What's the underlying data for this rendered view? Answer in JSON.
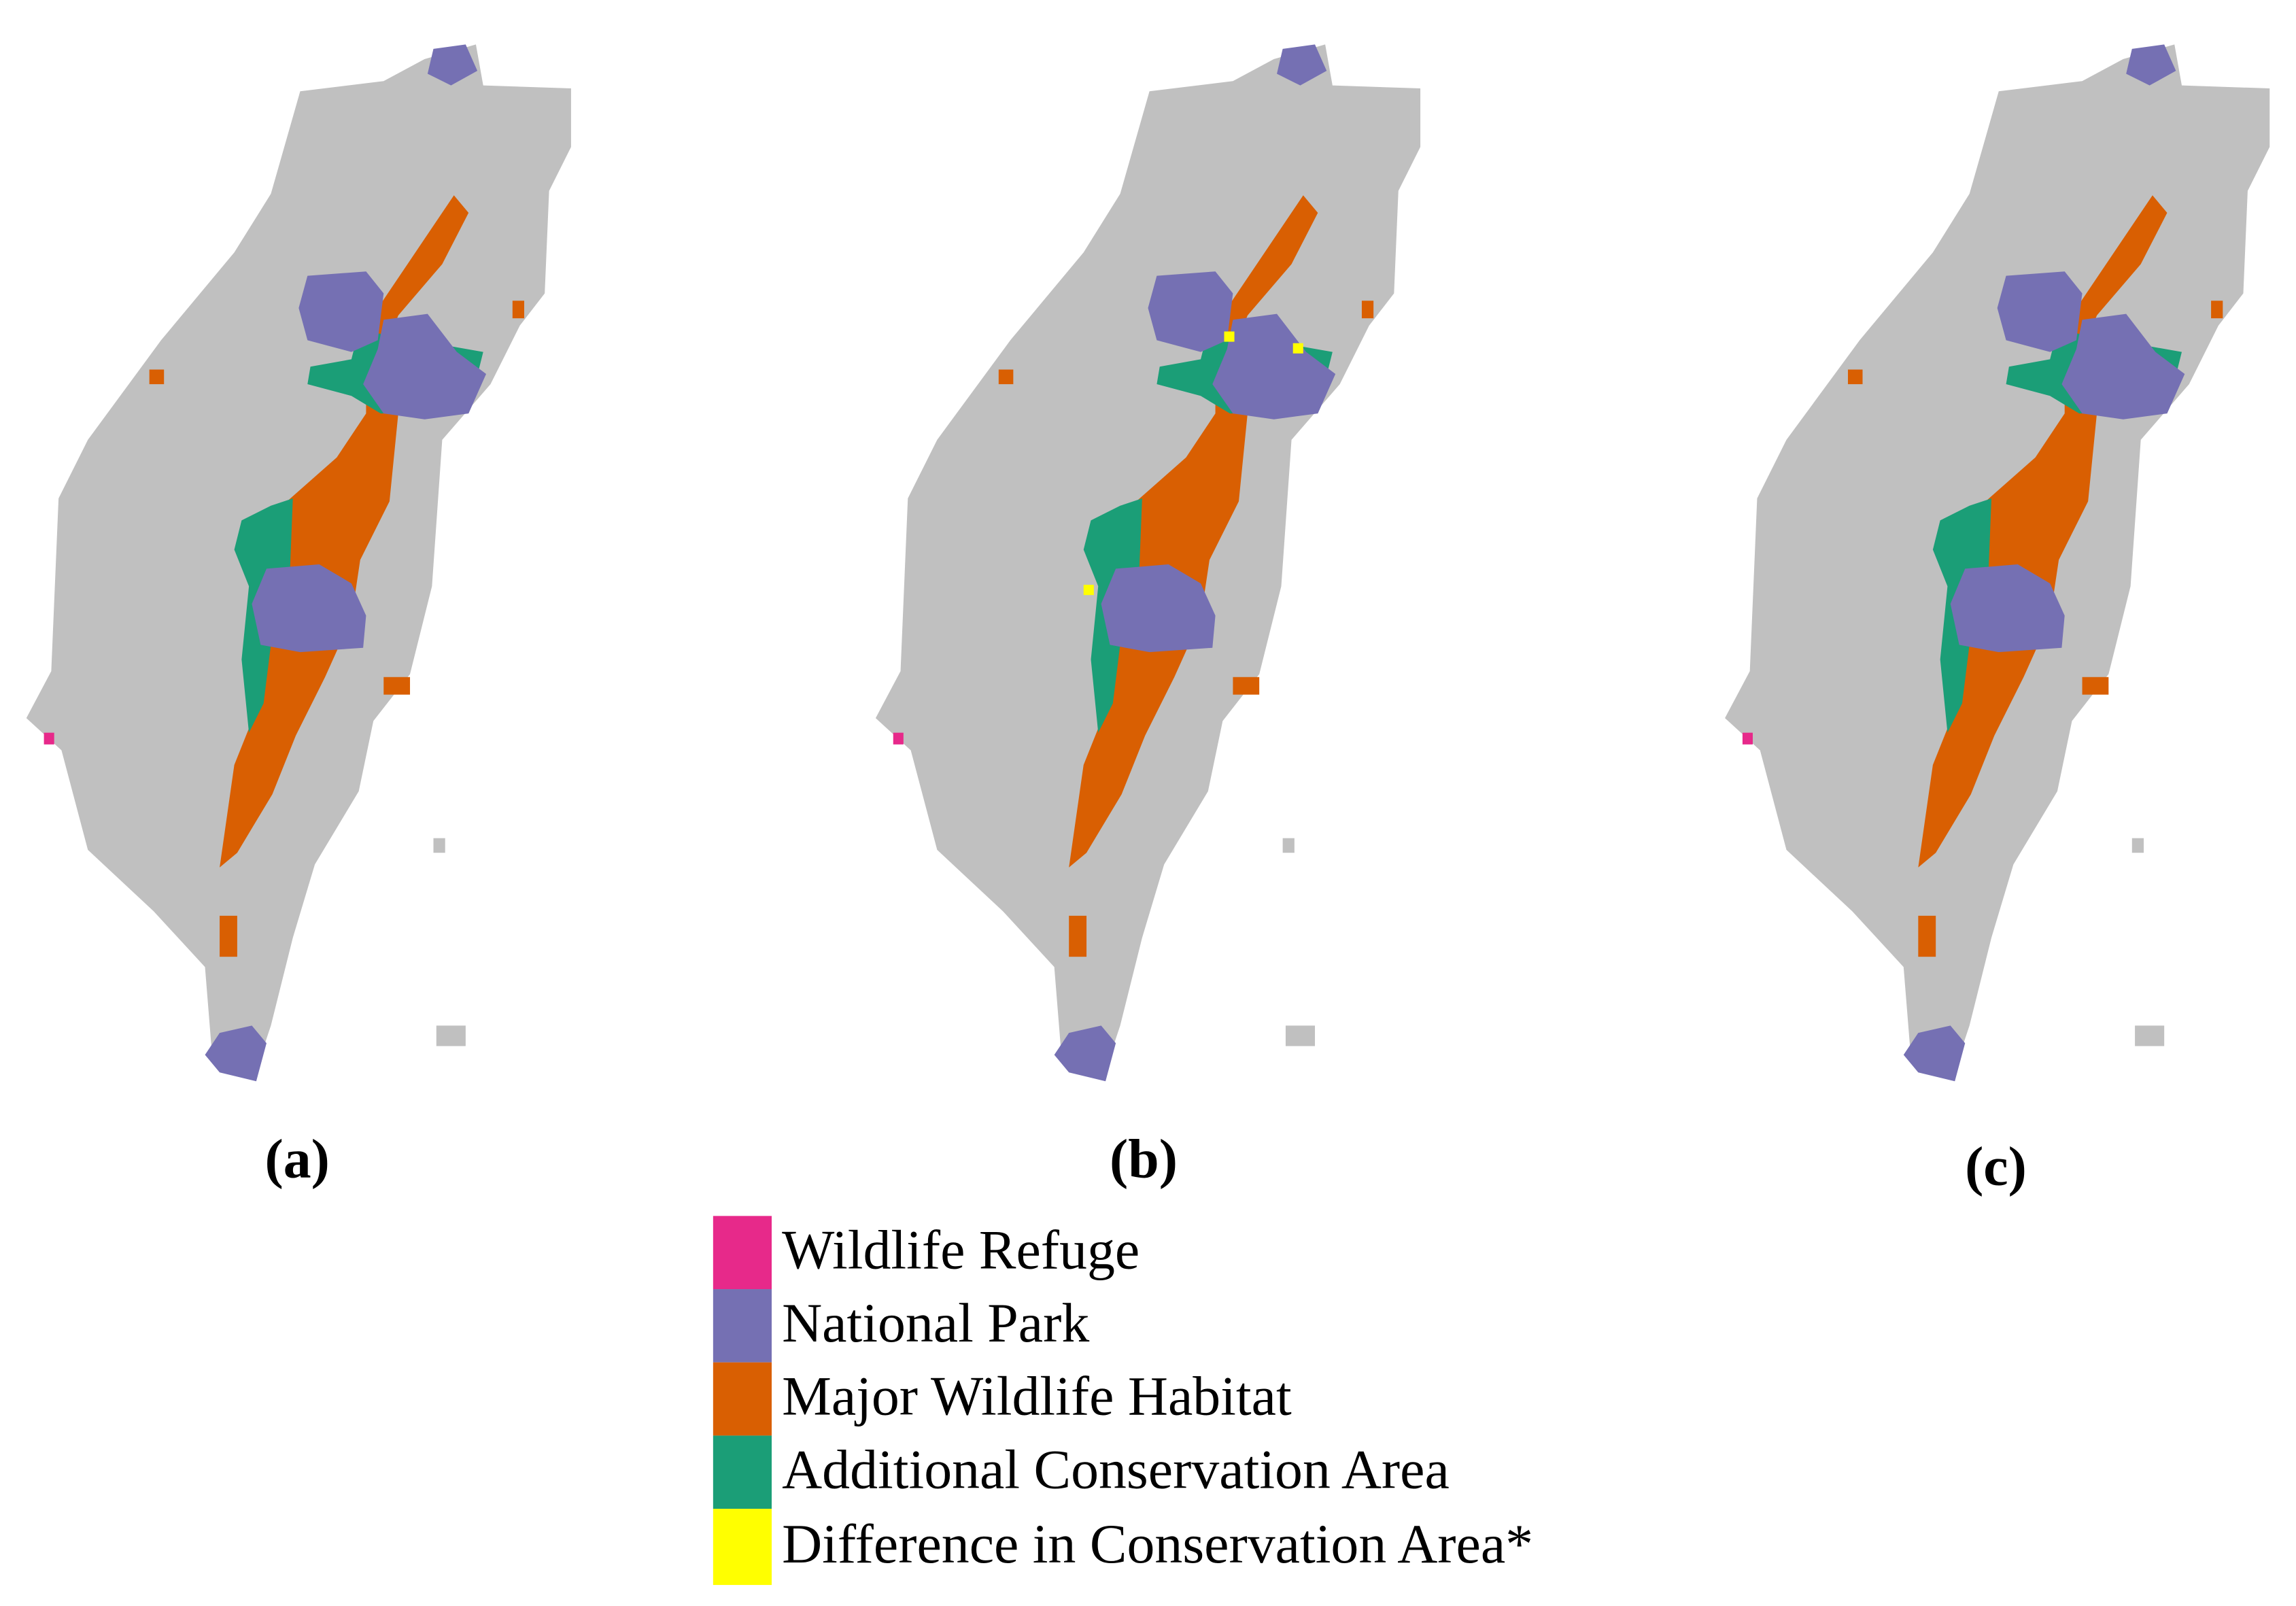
{
  "panels": [
    {
      "label": "(a)"
    },
    {
      "label": "(b)"
    },
    {
      "label": "(c)"
    }
  ],
  "legend": {
    "items": [
      {
        "label": "Wildlife Refuge",
        "color": "#e7298a"
      },
      {
        "label": "National Park",
        "color": "#7570b3"
      },
      {
        "label": "Major Wildlife Habitat",
        "color": "#d95f02"
      },
      {
        "label": "Additional Conservation Area",
        "color": "#1b9e77"
      },
      {
        "label": "Difference in Conservation Area*",
        "color": "#ffff00"
      }
    ]
  }
}
